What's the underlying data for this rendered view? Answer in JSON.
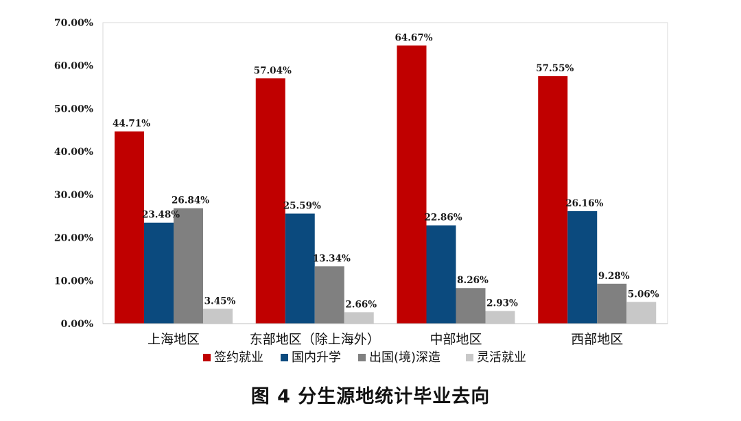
{
  "caption": "图 4 分生源地统计毕业去向",
  "chart_data": {
    "type": "bar",
    "title": "",
    "xlabel": "",
    "ylabel": "",
    "ylim": [
      0,
      70
    ],
    "y_ticks": [
      "0.00%",
      "10.00%",
      "20.00%",
      "30.00%",
      "40.00%",
      "50.00%",
      "60.00%",
      "70.00%"
    ],
    "categories": [
      "上海地区",
      "东部地区（除上海外）",
      "中部地区",
      "西部地区"
    ],
    "legend_position": "bottom",
    "grid": false,
    "series": [
      {
        "name": "签约就业",
        "color": "#c00000",
        "values": [
          44.71,
          57.04,
          64.67,
          57.55
        ],
        "labels": [
          "44.71%",
          "57.04%",
          "64.67%",
          "57.55%"
        ]
      },
      {
        "name": "国内升学",
        "color": "#0b4a7e",
        "values": [
          23.48,
          25.59,
          22.86,
          26.16
        ],
        "labels": [
          "23.48%",
          "25.59%",
          "22.86%",
          "26.16%"
        ]
      },
      {
        "name": "出国(境)深造",
        "color": "#808080",
        "values": [
          26.84,
          13.34,
          8.26,
          9.28
        ],
        "labels": [
          "26.84%",
          "13.34%",
          "8.26%",
          "9.28%"
        ]
      },
      {
        "name": "灵活就业",
        "color": "#c8c8c8",
        "values": [
          3.45,
          2.66,
          2.93,
          5.06
        ],
        "labels": [
          "3.45%",
          "2.66%",
          "2.93%",
          "5.06%"
        ]
      }
    ]
  }
}
